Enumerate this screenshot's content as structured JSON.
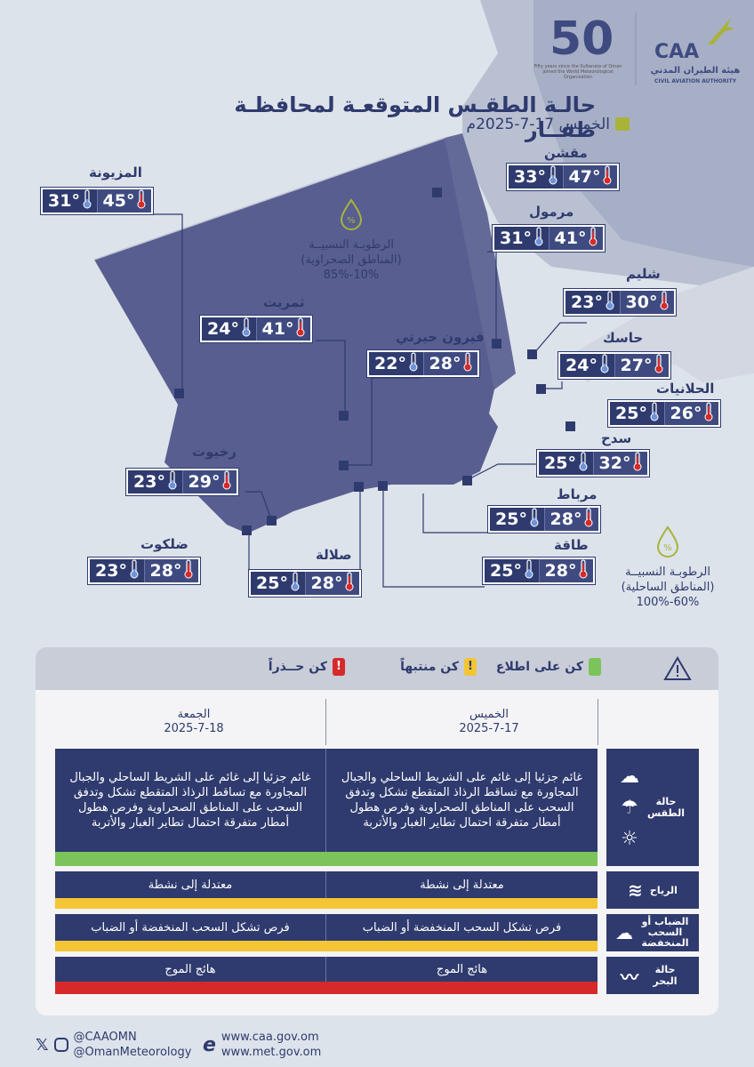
{
  "header": {
    "title": "حالـة الطقـس المتوقعـة لمحافظـة ظفــار",
    "date": "الخميس 17-7-2025م",
    "caa_logo_text": "CAA",
    "caa_arabic": "هيئة الطيران المدني",
    "caa_english": "CIVIL AVIATION AUTHORITY",
    "anniv_number": "50",
    "anniv_caption_en": "Fifty years since the Sultanate of Oman joined the World Meteorological Organization"
  },
  "map": {
    "cities": [
      {
        "name": "المزيونة",
        "max": "45°",
        "min": "31°"
      },
      {
        "name": "مقشن",
        "max": "47°",
        "min": "33°"
      },
      {
        "name": "مرمول",
        "max": "41°",
        "min": "31°"
      },
      {
        "name": "شليم",
        "max": "30°",
        "min": "23°"
      },
      {
        "name": "ثمريت",
        "max": "41°",
        "min": "24°"
      },
      {
        "name": "قيرون حيرتي",
        "max": "28°",
        "min": "22°"
      },
      {
        "name": "حاسك",
        "max": "27°",
        "min": "24°"
      },
      {
        "name": "الحلانيات",
        "max": "26°",
        "min": "25°"
      },
      {
        "name": "سدح",
        "max": "32°",
        "min": "25°"
      },
      {
        "name": "رخيوت",
        "max": "29°",
        "min": "23°"
      },
      {
        "name": "مرباط",
        "max": "28°",
        "min": "25°"
      },
      {
        "name": "ضلكوت",
        "max": "28°",
        "min": "23°"
      },
      {
        "name": "صلالة",
        "max": "28°",
        "min": "25°"
      },
      {
        "name": "طاقة",
        "max": "28°",
        "min": "25°"
      }
    ],
    "humidity_desert": {
      "title": "الرطوبـة النسبيــة",
      "sub": "(المناطق الصحراوية)",
      "value": "85%-10%"
    },
    "humidity_coastal": {
      "title": "الرطوبـة النسبيــة",
      "sub": "(المناطق الساحلية)",
      "value": "100%-60%"
    }
  },
  "legend": {
    "aware": "كن على اطلاع",
    "alert": "كن منتبهاً",
    "caution": "كن حــذراً",
    "colors": {
      "green": "#7cc35a",
      "yellow": "#f4c534",
      "red": "#d62a2a"
    }
  },
  "days": [
    {
      "day": "الخميس",
      "date": "2025-7-17"
    },
    {
      "day": "الجمعة",
      "date": "2025-7-18"
    }
  ],
  "rows": [
    {
      "category": "حالة الطقس",
      "thursday": "غائم جزئيا إلى غائم على الشريط الساحلي والجبال المجاورة مع تساقط الرذاذ المتقطع تشكل وتدفق السحب على المناطق الصحراوية وفرص هطول أمطار متفرقة احتمال تطاير الغبار والأتربة",
      "friday": "غائم جزئيا إلى غائم على الشريط الساحلي والجبال المجاورة مع تساقط الرذاذ المتقطع تشكل وتدفق السحب على المناطق الصحراوية وفرص هطول أمطار متفرقة احتمال تطاير الغبار والأتربة",
      "level_color": "#7cc35a"
    },
    {
      "category": "الرياح",
      "thursday": "معتدلة إلى نشطة",
      "friday": "معتدلة إلى نشطة",
      "level_color": "#f4c534"
    },
    {
      "category": "الضباب أو السحب المنخفضة",
      "thursday": "فرص تشكل السحب المنخفضة أو الضباب",
      "friday": "فرص تشكل السحب المنخفضة أو الضباب",
      "level_color": "#f4c534"
    },
    {
      "category": "حالة البحر",
      "thursday": "هائج الموج",
      "friday": "هائج الموج",
      "level_color": "#d62a2a"
    }
  ],
  "footer": {
    "handle_caa": "@CAAOMN",
    "handle_met": "@OmanMeteorology",
    "site_caa": "www.caa.gov.om",
    "site_met": "www.met.gov.om"
  }
}
